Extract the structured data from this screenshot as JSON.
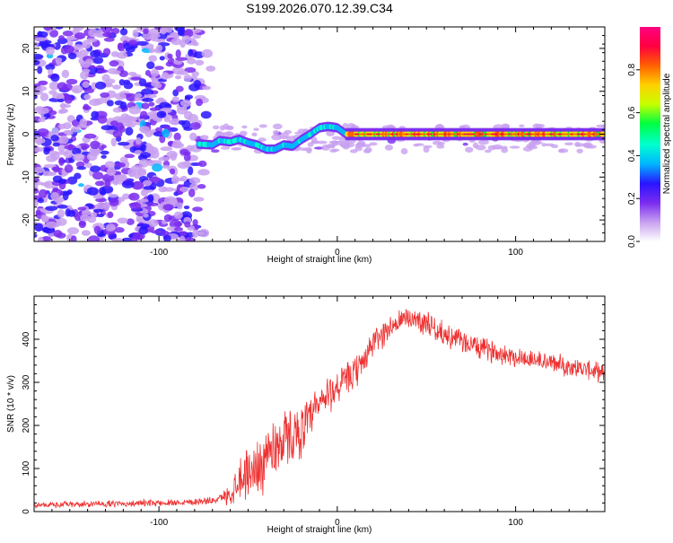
{
  "title": "S199.2026.070.12.39.C34",
  "chart_data": [
    {
      "type": "heatmap",
      "name": "spectrogram",
      "xlabel": "Height of straight line (km)",
      "ylabel": "Frequency (Hz)",
      "xlim": [
        -170,
        150
      ],
      "ylim": [
        -25,
        25
      ],
      "xticks": [
        -100,
        0,
        100
      ],
      "yticks": [
        -20,
        -10,
        0,
        10,
        20
      ],
      "xtick_labels": [
        "-100",
        "0",
        "100"
      ],
      "ytick_labels": [
        "-20",
        "-10",
        "0",
        "10",
        "20"
      ],
      "colorbar": {
        "label": "Normalized spectral amplitude",
        "range": [
          0,
          1
        ],
        "ticks": [
          0.0,
          0.2,
          0.4,
          0.6,
          0.8
        ],
        "tick_labels": [
          "0.0",
          "0.2",
          "0.4",
          "0.6",
          "0.8"
        ],
        "colormap": [
          "#ffffff",
          "#c8a0f0",
          "#7a2cf0",
          "#2a14ff",
          "#00b4ff",
          "#00ffd0",
          "#00ff40",
          "#c8ff00",
          "#ffd000",
          "#ff6000",
          "#ff0040",
          "#ff0080"
        ]
      },
      "noise_region_x": [
        -170,
        -70
      ],
      "carrier_track": {
        "x": [
          -78,
          -70,
          -66,
          -60,
          -55,
          -50,
          -45,
          -40,
          -35,
          -30,
          -25,
          -20,
          -15,
          -10,
          -5,
          0,
          5,
          150
        ],
        "y": [
          -2.3,
          -2.5,
          -1.5,
          -1.8,
          -1.2,
          -2.0,
          -2.5,
          -3.5,
          -3.5,
          -2.5,
          -2.8,
          -1.2,
          0,
          1.5,
          1.8,
          1.5,
          0,
          0
        ]
      }
    },
    {
      "type": "line",
      "name": "snr",
      "xlabel": "Height of straight line (km)",
      "ylabel": "SNR (10 * v/v)",
      "xlim": [
        -170,
        150
      ],
      "ylim": [
        0,
        500
      ],
      "xticks": [
        -100,
        0,
        100
      ],
      "yticks": [
        0,
        100,
        200,
        300,
        400
      ],
      "xtick_labels": [
        "-100",
        "0",
        "100"
      ],
      "ytick_labels": [
        "0",
        "100",
        "200",
        "300",
        "400"
      ],
      "color": "#ee3030",
      "series": [
        {
          "name": "snr_envelope",
          "x": [
            -170,
            -100,
            -70,
            -60,
            -55,
            -50,
            -45,
            -40,
            -35,
            -30,
            -25,
            -20,
            -15,
            -10,
            -5,
            0,
            10,
            20,
            30,
            40,
            50,
            60,
            80,
            100,
            120,
            140,
            150
          ],
          "y": [
            15,
            20,
            25,
            40,
            80,
            90,
            100,
            130,
            150,
            170,
            175,
            190,
            210,
            250,
            270,
            290,
            320,
            390,
            430,
            450,
            440,
            410,
            380,
            360,
            345,
            330,
            320
          ]
        }
      ],
      "noise_amplitude": [
        {
          "x": -170,
          "amp": 8
        },
        {
          "x": -65,
          "amp": 10
        },
        {
          "x": -55,
          "amp": 60
        },
        {
          "x": -40,
          "amp": 90
        },
        {
          "x": -20,
          "amp": 70
        },
        {
          "x": 0,
          "amp": 50
        },
        {
          "x": 30,
          "amp": 35
        },
        {
          "x": 150,
          "amp": 25
        }
      ]
    }
  ]
}
